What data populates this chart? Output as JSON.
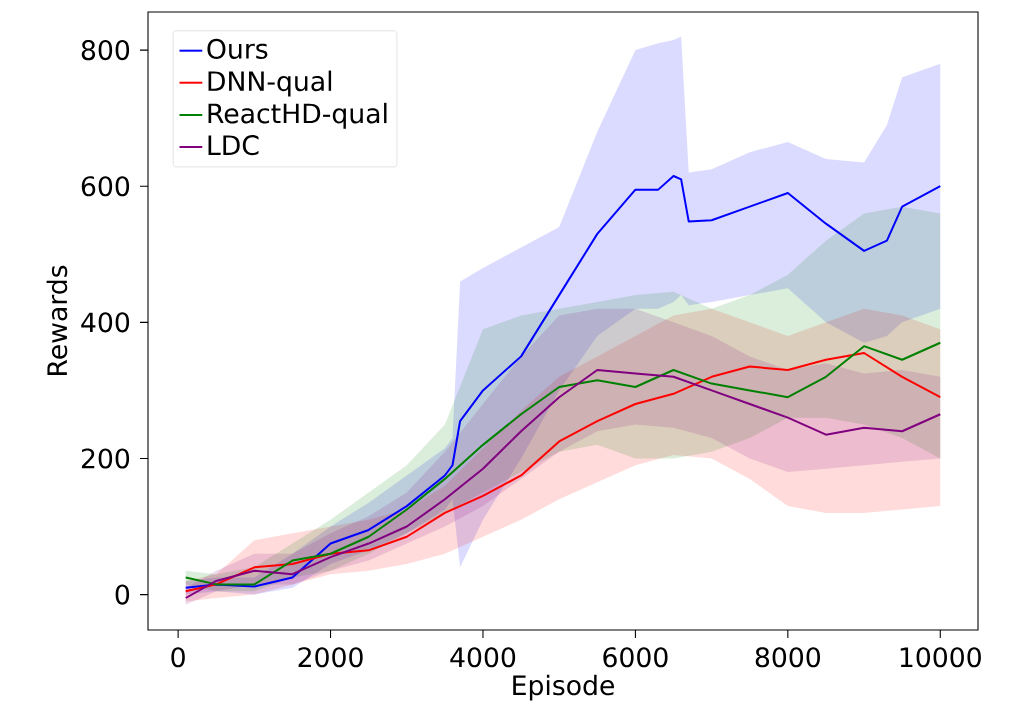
{
  "chart_data": {
    "type": "line",
    "xlabel": "Episode",
    "ylabel": "Rewards",
    "xlim": [
      -395,
      10495
    ],
    "ylim": [
      -52,
      856
    ],
    "xticks": [
      0,
      2000,
      4000,
      6000,
      8000,
      10000
    ],
    "yticks": [
      0,
      200,
      400,
      600,
      800
    ],
    "legend": "top left",
    "grid": false,
    "marker": "none",
    "line_style": "solid",
    "series": [
      {
        "name": "Ours",
        "color": "#0000ff",
        "x": [
          100,
          500,
          1000,
          1500,
          2000,
          2500,
          3000,
          3500,
          3600,
          3700,
          4000,
          4500,
          5000,
          5500,
          6000,
          6300,
          6500,
          6600,
          6700,
          7000,
          7500,
          8000,
          8500,
          9000,
          9300,
          9500,
          10000
        ],
        "values": [
          10,
          15,
          12,
          25,
          75,
          95,
          130,
          175,
          190,
          255,
          300,
          350,
          440,
          530,
          595,
          595,
          615,
          610,
          548,
          550,
          570,
          590,
          545,
          505,
          520,
          570,
          600
        ],
        "lower": [
          0,
          5,
          0,
          10,
          45,
          65,
          90,
          125,
          140,
          40,
          110,
          200,
          300,
          380,
          420,
          420,
          430,
          440,
          425,
          430,
          440,
          450,
          400,
          370,
          380,
          400,
          420
        ],
        "upper": [
          20,
          25,
          25,
          60,
          100,
          135,
          175,
          215,
          230,
          460,
          480,
          510,
          540,
          680,
          800,
          810,
          815,
          820,
          620,
          625,
          650,
          665,
          640,
          635,
          690,
          760,
          780
        ]
      },
      {
        "name": "DNN-qual",
        "color": "#ff0000",
        "x": [
          100,
          500,
          1000,
          1500,
          2000,
          2500,
          3000,
          3500,
          4000,
          4500,
          5000,
          5500,
          6000,
          6500,
          7000,
          7500,
          8000,
          8500,
          9000,
          9500,
          10000
        ],
        "values": [
          5,
          15,
          40,
          45,
          60,
          65,
          85,
          120,
          145,
          175,
          225,
          255,
          280,
          295,
          320,
          335,
          330,
          345,
          355,
          320,
          290
        ],
        "lower": [
          -10,
          -5,
          0,
          15,
          30,
          35,
          45,
          60,
          85,
          110,
          140,
          165,
          190,
          205,
          200,
          170,
          130,
          120,
          120,
          125,
          130
        ],
        "upper": [
          20,
          30,
          80,
          90,
          100,
          110,
          125,
          160,
          215,
          270,
          320,
          350,
          380,
          410,
          420,
          400,
          380,
          400,
          420,
          410,
          390
        ]
      },
      {
        "name": "ReactHD-qual",
        "color": "#008000",
        "x": [
          100,
          500,
          1000,
          1500,
          2000,
          2500,
          3000,
          3500,
          4000,
          4500,
          5000,
          5500,
          6000,
          6500,
          7000,
          7500,
          8000,
          8500,
          9000,
          9500,
          10000
        ],
        "values": [
          25,
          15,
          15,
          50,
          60,
          85,
          125,
          170,
          220,
          265,
          305,
          315,
          305,
          330,
          310,
          300,
          290,
          320,
          365,
          345,
          370
        ],
        "lower": [
          15,
          5,
          5,
          25,
          35,
          60,
          90,
          120,
          150,
          180,
          210,
          220,
          200,
          200,
          210,
          230,
          260,
          260,
          250,
          230,
          200
        ],
        "upper": [
          35,
          30,
          40,
          75,
          110,
          150,
          190,
          250,
          390,
          410,
          420,
          430,
          440,
          445,
          420,
          440,
          470,
          520,
          560,
          570,
          560
        ]
      },
      {
        "name": "LDC",
        "color": "#800080",
        "x": [
          100,
          500,
          1000,
          1500,
          2000,
          2500,
          3000,
          3500,
          4000,
          4500,
          5000,
          5500,
          6000,
          6500,
          7000,
          7500,
          8000,
          8500,
          9000,
          9500,
          10000
        ],
        "values": [
          -5,
          20,
          35,
          30,
          55,
          75,
          100,
          140,
          185,
          240,
          290,
          330,
          325,
          320,
          300,
          280,
          260,
          235,
          245,
          240,
          265
        ],
        "lower": [
          -15,
          5,
          15,
          15,
          35,
          50,
          75,
          100,
          130,
          170,
          210,
          240,
          250,
          245,
          230,
          200,
          180,
          185,
          190,
          195,
          200
        ],
        "upper": [
          10,
          35,
          60,
          60,
          90,
          115,
          150,
          210,
          280,
          350,
          410,
          420,
          420,
          400,
          380,
          350,
          330,
          340,
          325,
          330,
          320
        ]
      }
    ]
  }
}
